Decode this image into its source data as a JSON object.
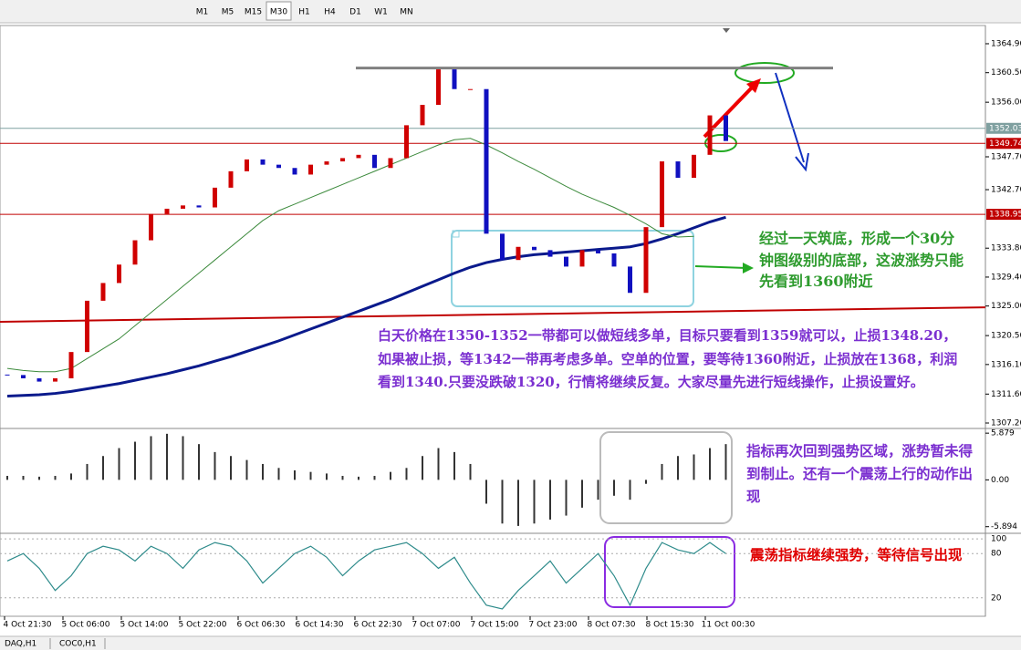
{
  "toolbar": {
    "timeframes": [
      "M1",
      "M5",
      "M15",
      "M30",
      "H1",
      "H4",
      "D1",
      "W1",
      "MN"
    ]
  },
  "chart_data": {
    "type": "candlestick",
    "closes": [
      1314.5,
      1314.0,
      1313.5,
      1314.0,
      1318.0,
      1325.8,
      1328.5,
      1331.3,
      1335.0,
      1339.0,
      1339.8,
      1340.3,
      1340.0,
      1343.0,
      1345.5,
      1347.3,
      1346.5,
      1346.0,
      1345.0,
      1346.5,
      1347.0,
      1347.5,
      1348.0,
      1346.0,
      1347.5,
      1352.5,
      1355.6,
      1361.0,
      1358.0,
      1358.0,
      1336.0,
      1332.0,
      1334.0,
      1333.5,
      1332.5,
      1331.0,
      1333.5,
      1333.0,
      1331.0,
      1327.0,
      1337.0,
      1347.0,
      1344.5,
      1348.0,
      1354.0,
      1350.1
    ],
    "up_color": "#d00000",
    "down_color": "#1010c0",
    "ylim": [
      1306.37,
      1367.67
    ],
    "yticks": [
      {
        "value": 1364.9,
        "label": "1364.90"
      },
      {
        "value": 1360.5,
        "label": "1360.50"
      },
      {
        "value": 1356,
        "label": "1356.00"
      },
      {
        "value": 1347.7,
        "label": "1347.70"
      },
      {
        "value": 1342.7,
        "label": "1342.70"
      },
      {
        "value": 1333.8,
        "label": "1333.80"
      },
      {
        "value": 1329.4,
        "label": "1329.40"
      },
      {
        "value": 1325,
        "label": "1325.00"
      },
      {
        "value": 1320.5,
        "label": "1320.50"
      },
      {
        "value": 1316.1,
        "label": "1316.10"
      },
      {
        "value": 1311.6,
        "label": "1311.60"
      },
      {
        "value": 1307.2,
        "label": "1307.20"
      }
    ],
    "moving_averages": [
      {
        "color": "#0a1a8c",
        "values": [
          1311.3,
          1311.4,
          1311.5,
          1311.7,
          1312.0,
          1312.4,
          1312.8,
          1313.2,
          1313.7,
          1314.2,
          1314.7,
          1315.3,
          1315.9,
          1316.6,
          1317.3,
          1318.1,
          1318.9,
          1319.7,
          1320.6,
          1321.5,
          1322.4,
          1323.3,
          1324.2,
          1325.1,
          1326.0,
          1327.0,
          1328.0,
          1329.0,
          1330.0,
          1330.9,
          1331.6,
          1332.1,
          1332.5,
          1332.8,
          1333.0,
          1333.2,
          1333.4,
          1333.6,
          1333.8,
          1334.0,
          1334.5,
          1335.2,
          1336.0,
          1336.9,
          1337.8,
          1338.5
        ]
      },
      {
        "color": "#3c8a3c",
        "values": [
          1315.5,
          1315.2,
          1315.0,
          1315.0,
          1315.5,
          1317,
          1318.5,
          1320,
          1322,
          1324,
          1326,
          1328,
          1330,
          1332,
          1334,
          1336,
          1338,
          1339.5,
          1340.5,
          1341.5,
          1342.5,
          1343.5,
          1344.5,
          1345.5,
          1346.5,
          1347.5,
          1348.5,
          1349.5,
          1350.3,
          1350.5,
          1349.5,
          1348.3,
          1347.0,
          1345.8,
          1344.5,
          1343.2,
          1342.0,
          1341.0,
          1340,
          1338.8,
          1337.5,
          1336,
          1335.5,
          1335.6,
          null,
          null
        ]
      }
    ],
    "levels": [
      {
        "value": 1352.03,
        "label": "1352.03",
        "color": "#7fa0a0"
      },
      {
        "value": 1349.74,
        "label": "1349.74",
        "color": "#c00000"
      },
      {
        "value": 1338.95,
        "label": "1338.95",
        "color": "#c00000"
      }
    ],
    "resistance": {
      "value": 1361.2,
      "color": "#808080"
    },
    "trendline": {
      "from": 1322.6,
      "to": 1324.8,
      "color": "#c00000"
    },
    "x_labels": [
      "4 Oct 21:30",
      "5 Oct 06:00",
      "5 Oct 14:00",
      "5 Oct 22:00",
      "6 Oct 06:30",
      "6 Oct 14:30",
      "6 Oct 22:30",
      "7 Oct 07:00",
      "7 Oct 15:00",
      "7 Oct 23:00",
      "8 Oct 07:30",
      "8 Oct 15:30",
      "11 Oct 00:30"
    ],
    "annotations": [
      "经过一天筑底，形成一个30分钟图级别的底部，这波涨势只能先看到1360附近",
      "白天价格在1350-1352一带都可以做短线多单，目标只要看到1359就可以，止损1348.20，如果被止损，等1342一带再考虑多单。空单的位置，要等待1360附近，止损放在1368，利润看到1340.只要没跌破1320，行情将继续反复。大家尽量先进行短线操作，止损设置好。"
    ]
  },
  "macd": {
    "values": [
      0.5,
      0.5,
      0.4,
      0.5,
      0.8,
      2,
      3,
      4,
      4.8,
      5.5,
      5.8,
      5.5,
      4.5,
      3.5,
      3,
      2.5,
      2,
      1.5,
      1.2,
      1,
      0.8,
      0.5,
      0.4,
      0.5,
      1,
      1.5,
      3,
      4,
      3.5,
      2,
      -3,
      -5.5,
      -5.8,
      -5.5,
      -5,
      -4.5,
      -3.5,
      -2.5,
      -2,
      -2.5,
      -0.5,
      2,
      3,
      3.2,
      4,
      4.5
    ],
    "color": "#333333",
    "ylim": [
      -6.73,
      6.47
    ],
    "yticks": [
      {
        "value": 5.879,
        "label": "5.879"
      },
      {
        "value": 0,
        "label": "0.00"
      },
      {
        "value": -5.894,
        "label": "-5.894"
      }
    ],
    "annotation": "指标再次回到强势区域，涨势暂未得到制止。还有一个震荡上行的动作出现"
  },
  "stochastic": {
    "values": [
      70,
      80,
      60,
      30,
      50,
      80,
      90,
      85,
      70,
      90,
      80,
      60,
      85,
      95,
      90,
      70,
      40,
      60,
      80,
      90,
      75,
      50,
      70,
      85,
      90,
      95,
      80,
      60,
      75,
      40,
      10,
      5,
      30,
      50,
      70,
      40,
      60,
      80,
      50,
      10,
      60,
      95,
      85,
      80,
      95,
      80
    ],
    "color": "#2e8b8b",
    "ylim": [
      -5,
      107.5
    ],
    "yticks": [
      100,
      80,
      20
    ],
    "annotation": "震荡指标继续强势，等待信号出现"
  },
  "tabs": [
    "DAQ,H1",
    "COC0,H1"
  ]
}
